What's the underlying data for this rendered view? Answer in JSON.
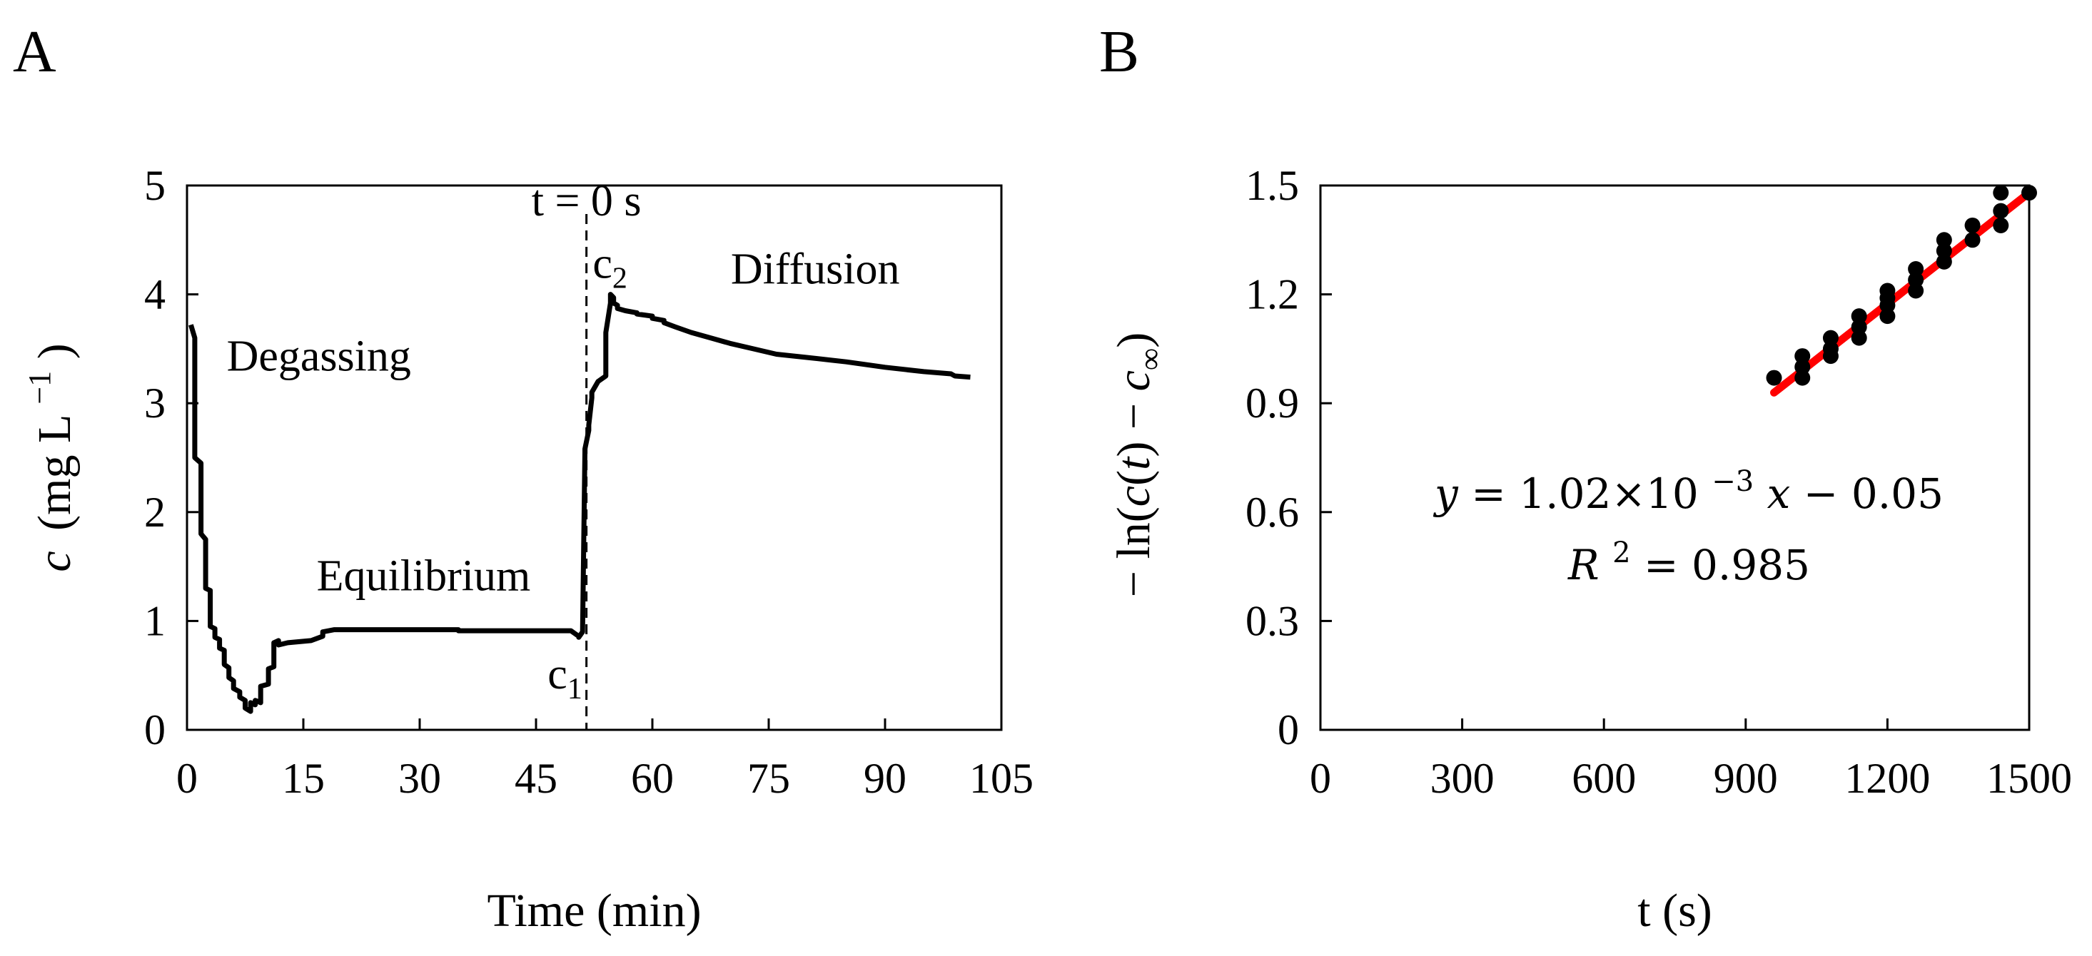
{
  "chart_data": [
    {
      "panel": "A",
      "type": "line",
      "xlabel": "Time (min)",
      "ylabel": "c (mg L⁻¹)",
      "ylabel_parts": {
        "var": "c",
        "unit_open": "(mg L",
        "sup": "−1",
        "unit_close": ")"
      },
      "xlim": [
        0,
        105
      ],
      "ylim": [
        0,
        5
      ],
      "xticks": [
        0,
        15,
        30,
        45,
        60,
        75,
        90,
        105
      ],
      "yticks": [
        0,
        1,
        2,
        3,
        4,
        5
      ],
      "grid": false,
      "vline": {
        "x": 51.5,
        "label": "t = 0 s"
      },
      "annotations": [
        {
          "text": "Degassing",
          "x": 17,
          "y": 3.3
        },
        {
          "text": "Equilibrium",
          "x": 30.5,
          "y": 1.28
        },
        {
          "text": "Diffusion",
          "x": 81,
          "y": 4.1
        }
      ],
      "point_labels": [
        {
          "base": "c",
          "sub": "1",
          "x": 46.5,
          "y": 0.38
        },
        {
          "base": "c",
          "sub": "2",
          "x": 52.3,
          "y": 4.15
        }
      ],
      "series": [
        {
          "name": "c(t)",
          "x": [
            0.5,
            1.0,
            1.0,
            1.8,
            1.8,
            2.4,
            2.4,
            3.0,
            3.0,
            3.6,
            3.6,
            4.2,
            4.2,
            4.8,
            4.8,
            5.4,
            5.4,
            6.0,
            6.0,
            6.8,
            6.8,
            7.5,
            7.5,
            8.2,
            8.2,
            8.8,
            8.8,
            9.5,
            9.5,
            10.5,
            10.5,
            11.2,
            11.2,
            11.8,
            11.8,
            13.0,
            13.0,
            16.0,
            16.0,
            17.5,
            17.5,
            19.0,
            19.0,
            35.0,
            35.0,
            49.5,
            49.5,
            50.5,
            50.5,
            51.0,
            51.0,
            51.3,
            51.3,
            51.8,
            51.8,
            52.2,
            52.2,
            53.0,
            53.0,
            54.0,
            54.0,
            54.6,
            54.6,
            55.0,
            55.0,
            55.5,
            55.5,
            56.5,
            56.5,
            58.0,
            58.0,
            60.0,
            60.0,
            61.5,
            61.5,
            63.0,
            63.0,
            65.0,
            65.0,
            67.5,
            67.5,
            70.0,
            70.0,
            73.0,
            73.0,
            76.0,
            76.0,
            80.0,
            80.0,
            85.0,
            85.0,
            90.0,
            90.0,
            95.0,
            95.0,
            98.5,
            98.5,
            99.0,
            99.0,
            101.0
          ],
          "y": [
            3.72,
            3.6,
            2.5,
            2.45,
            1.8,
            1.75,
            1.3,
            1.28,
            0.95,
            0.93,
            0.85,
            0.83,
            0.75,
            0.73,
            0.6,
            0.57,
            0.48,
            0.45,
            0.38,
            0.35,
            0.3,
            0.27,
            0.2,
            0.17,
            0.25,
            0.23,
            0.27,
            0.25,
            0.4,
            0.42,
            0.56,
            0.58,
            0.8,
            0.82,
            0.78,
            0.8,
            0.8,
            0.82,
            0.82,
            0.86,
            0.9,
            0.92,
            0.92,
            0.92,
            0.91,
            0.91,
            0.91,
            0.86,
            0.85,
            0.9,
            0.9,
            2.55,
            2.58,
            2.75,
            2.8,
            3.05,
            3.1,
            3.2,
            3.2,
            3.25,
            3.65,
            3.92,
            4.0,
            3.97,
            3.92,
            3.9,
            3.87,
            3.85,
            3.85,
            3.83,
            3.82,
            3.8,
            3.78,
            3.76,
            3.74,
            3.7,
            3.7,
            3.65,
            3.65,
            3.6,
            3.6,
            3.55,
            3.55,
            3.5,
            3.5,
            3.45,
            3.45,
            3.42,
            3.42,
            3.38,
            3.38,
            3.33,
            3.33,
            3.29,
            3.29,
            3.27,
            3.27,
            3.25,
            3.25,
            3.24
          ]
        }
      ]
    },
    {
      "panel": "B",
      "type": "scatter",
      "xlabel": "t (s)",
      "ylabel": "− ln(c(t) − c∞)",
      "ylabel_parts": {
        "pre": "− ln(",
        "italic_c": "c",
        "open_t": "(",
        "italic_t": "t",
        "close_t": ") − ",
        "italic_c2": "c",
        "sub": "∞",
        "close": ")"
      },
      "xlim": [
        0,
        1500
      ],
      "ylim": [
        0,
        1.5
      ],
      "xticks": [
        0,
        300,
        600,
        900,
        1200,
        1500
      ],
      "yticks": [
        0,
        0.3,
        0.6,
        0.9,
        1.2,
        1.5
      ],
      "ytick_labels": [
        "0",
        "0.3",
        "0.6",
        "0.9",
        "1.2",
        "1.5"
      ],
      "grid": false,
      "fit": {
        "slope": 0.00102,
        "intercept": -0.05,
        "r2": 0.985,
        "color": "#ff0000",
        "x_range": [
          960,
          1500
        ]
      },
      "equation": {
        "line1": {
          "y": "y",
          "eq": " = 1.02×10",
          "exp": "−3",
          "x": "x",
          "rest": " − 0.05"
        },
        "line2": {
          "r": "R",
          "exp": "2",
          "rest": " = 0.985"
        }
      },
      "marker_color": "#000000",
      "x": [
        960,
        1020,
        1020,
        1020,
        1080,
        1080,
        1080,
        1140,
        1140,
        1140,
        1200,
        1200,
        1200,
        1200,
        1260,
        1260,
        1260,
        1320,
        1320,
        1320,
        1380,
        1380,
        1440,
        1440,
        1440,
        1500
      ],
      "y": [
        0.97,
        0.97,
        1.0,
        1.03,
        1.03,
        1.05,
        1.08,
        1.08,
        1.11,
        1.14,
        1.14,
        1.17,
        1.19,
        1.21,
        1.21,
        1.24,
        1.27,
        1.29,
        1.32,
        1.35,
        1.35,
        1.39,
        1.39,
        1.43,
        1.48,
        1.48
      ]
    }
  ],
  "panels": {
    "a_label": "A",
    "b_label": "B"
  }
}
